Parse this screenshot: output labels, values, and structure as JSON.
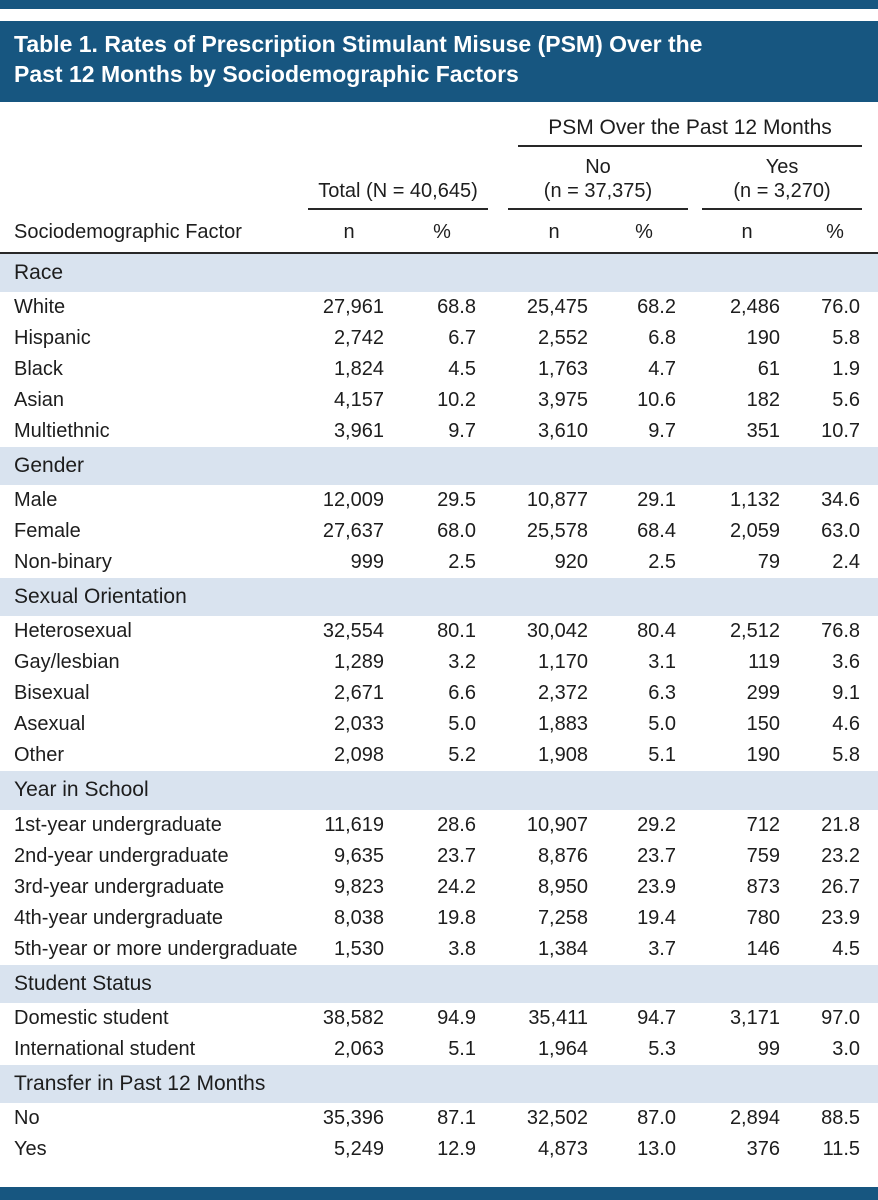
{
  "colors": {
    "accent": "#175680",
    "band": "#d9e3ef",
    "rule": "#282828",
    "text": "#1d1d1d",
    "title_text": "#ffffff"
  },
  "title_lines": [
    "Table 1. Rates of Prescription Stimulant Misuse (PSM) Over the",
    "Past 12 Months by Sociodemographic Factors"
  ],
  "header": {
    "spanner": "PSM Over the Past 12 Months",
    "total": "Total (N = 40,645)",
    "no": {
      "line1": "No",
      "line2": "(n = 37,375)"
    },
    "yes": {
      "line1": "Yes",
      "line2": "(n = 3,270)"
    },
    "factor": "Sociodemographic Factor",
    "n": "n",
    "pct": "%"
  },
  "sections": [
    {
      "title": "Race",
      "rows": [
        {
          "label": "White",
          "cells": [
            "27,961",
            "68.8",
            "25,475",
            "68.2",
            "2,486",
            "76.0"
          ]
        },
        {
          "label": "Hispanic",
          "cells": [
            "2,742",
            "6.7",
            "2,552",
            "6.8",
            "190",
            "5.8"
          ]
        },
        {
          "label": "Black",
          "cells": [
            "1,824",
            "4.5",
            "1,763",
            "4.7",
            "61",
            "1.9"
          ]
        },
        {
          "label": "Asian",
          "cells": [
            "4,157",
            "10.2",
            "3,975",
            "10.6",
            "182",
            "5.6"
          ]
        },
        {
          "label": "Multiethnic",
          "cells": [
            "3,961",
            "9.7",
            "3,610",
            "9.7",
            "351",
            "10.7"
          ]
        }
      ]
    },
    {
      "title": "Gender",
      "rows": [
        {
          "label": "Male",
          "cells": [
            "12,009",
            "29.5",
            "10,877",
            "29.1",
            "1,132",
            "34.6"
          ]
        },
        {
          "label": "Female",
          "cells": [
            "27,637",
            "68.0",
            "25,578",
            "68.4",
            "2,059",
            "63.0"
          ]
        },
        {
          "label": "Non-binary",
          "cells": [
            "999",
            "2.5",
            "920",
            "2.5",
            "79",
            "2.4"
          ]
        }
      ]
    },
    {
      "title": "Sexual Orientation",
      "rows": [
        {
          "label": "Heterosexual",
          "cells": [
            "32,554",
            "80.1",
            "30,042",
            "80.4",
            "2,512",
            "76.8"
          ]
        },
        {
          "label": "Gay/lesbian",
          "cells": [
            "1,289",
            "3.2",
            "1,170",
            "3.1",
            "119",
            "3.6"
          ]
        },
        {
          "label": "Bisexual",
          "cells": [
            "2,671",
            "6.6",
            "2,372",
            "6.3",
            "299",
            "9.1"
          ]
        },
        {
          "label": "Asexual",
          "cells": [
            "2,033",
            "5.0",
            "1,883",
            "5.0",
            "150",
            "4.6"
          ]
        },
        {
          "label": "Other",
          "cells": [
            "2,098",
            "5.2",
            "1,908",
            "5.1",
            "190",
            "5.8"
          ]
        }
      ]
    },
    {
      "title": "Year in School",
      "rows": [
        {
          "label": "1st-year undergraduate",
          "cells": [
            "11,619",
            "28.6",
            "10,907",
            "29.2",
            "712",
            "21.8"
          ]
        },
        {
          "label": "2nd-year undergraduate",
          "cells": [
            "9,635",
            "23.7",
            "8,876",
            "23.7",
            "759",
            "23.2"
          ]
        },
        {
          "label": "3rd-year undergraduate",
          "cells": [
            "9,823",
            "24.2",
            "8,950",
            "23.9",
            "873",
            "26.7"
          ]
        },
        {
          "label": "4th-year undergraduate",
          "cells": [
            "8,038",
            "19.8",
            "7,258",
            "19.4",
            "780",
            "23.9"
          ]
        },
        {
          "label": "5th-year or more undergraduate",
          "cells": [
            "1,530",
            "3.8",
            "1,384",
            "3.7",
            "146",
            "4.5"
          ]
        }
      ]
    },
    {
      "title": "Student Status",
      "rows": [
        {
          "label": "Domestic student",
          "cells": [
            "38,582",
            "94.9",
            "35,411",
            "94.7",
            "3,171",
            "97.0"
          ]
        },
        {
          "label": "International student",
          "cells": [
            "2,063",
            "5.1",
            "1,964",
            "5.3",
            "99",
            "3.0"
          ]
        }
      ]
    },
    {
      "title": "Transfer in Past 12 Months",
      "rows": [
        {
          "label": "No",
          "cells": [
            "35,396",
            "87.1",
            "32,502",
            "87.0",
            "2,894",
            "88.5"
          ]
        },
        {
          "label": "Yes",
          "cells": [
            "5,249",
            "12.9",
            "4,873",
            "13.0",
            "376",
            "11.5"
          ]
        }
      ]
    }
  ]
}
